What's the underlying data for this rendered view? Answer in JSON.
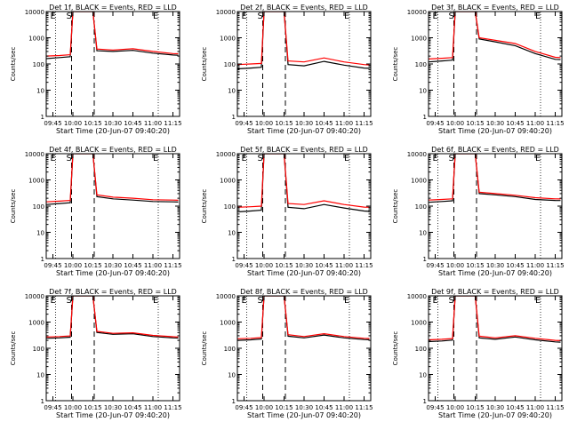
{
  "chart_data": [
    {
      "type": "line",
      "title": "Det 1f, BLACK = Events, RED = LLD",
      "xlabel": "Start Time (20-Jun-07 09:40:20)",
      "ylabel": "Counts/sec",
      "xticks": [
        "09:45",
        "10:00",
        "10:15",
        "10:30",
        "10:45",
        "11:00",
        "11:15"
      ],
      "yticks": [
        "1",
        "10",
        "100",
        "1000",
        "10000"
      ],
      "x_range": [
        "09:40",
        "11:20"
      ],
      "yscale": "log",
      "ylim": [
        1,
        10000
      ],
      "markers": [
        {
          "label": "E",
          "x": "09:47",
          "style": "dotted"
        },
        {
          "label": "S",
          "x": "09:59",
          "style": "dashed"
        },
        {
          "label": "",
          "x": "10:16",
          "style": "dashed"
        },
        {
          "label": "E",
          "x": "11:04",
          "style": "dotted"
        }
      ],
      "series": [
        {
          "name": "Events",
          "color": "#000000",
          "x": [
            "09:40",
            "09:50",
            "09:58",
            "10:00",
            "10:15",
            "10:18",
            "10:30",
            "10:45",
            "11:00",
            "11:15",
            "11:19"
          ],
          "values": [
            160,
            175,
            190,
            10000,
            10000,
            320,
            300,
            330,
            260,
            220,
            215
          ]
        },
        {
          "name": "LLD",
          "color": "#ff0000",
          "x": [
            "09:40",
            "09:50",
            "09:58",
            "10:00",
            "10:15",
            "10:18",
            "10:30",
            "10:45",
            "11:00",
            "11:15",
            "11:19"
          ],
          "values": [
            200,
            210,
            225,
            10000,
            10000,
            370,
            340,
            380,
            300,
            250,
            245
          ]
        }
      ]
    },
    {
      "type": "line",
      "title": "Det 2f, BLACK = Events, RED = LLD",
      "xlabel": "Start Time (20-Jun-07 09:40:20)",
      "ylabel": "Counts/sec",
      "xticks": [
        "09:45",
        "10:00",
        "10:15",
        "10:30",
        "10:45",
        "11:00",
        "11:15"
      ],
      "yticks": [
        "1",
        "10",
        "100",
        "1000",
        "10000"
      ],
      "x_range": [
        "09:40",
        "11:20"
      ],
      "yscale": "log",
      "ylim": [
        1,
        10000
      ],
      "markers": [
        {
          "label": "E",
          "x": "09:47",
          "style": "dotted"
        },
        {
          "label": "S",
          "x": "09:59",
          "style": "dashed"
        },
        {
          "label": "",
          "x": "10:16",
          "style": "dashed"
        },
        {
          "label": "E",
          "x": "11:04",
          "style": "dotted"
        }
      ],
      "series": [
        {
          "name": "Events",
          "color": "#000000",
          "x": [
            "09:40",
            "09:50",
            "09:58",
            "10:00",
            "10:15",
            "10:18",
            "10:30",
            "10:45",
            "11:00",
            "11:15",
            "11:19"
          ],
          "values": [
            65,
            70,
            75,
            10000,
            10000,
            95,
            85,
            125,
            90,
            70,
            68
          ]
        },
        {
          "name": "LLD",
          "color": "#ff0000",
          "x": [
            "09:40",
            "09:50",
            "09:58",
            "10:00",
            "10:15",
            "10:18",
            "10:30",
            "10:45",
            "11:00",
            "11:15",
            "11:19"
          ],
          "values": [
            95,
            100,
            105,
            10000,
            10000,
            130,
            120,
            170,
            120,
            95,
            92
          ]
        }
      ]
    },
    {
      "type": "line",
      "title": "Det 3f, BLACK = Events, RED = LLD",
      "xlabel": "Start Time (20-Jun-07 09:40:20)",
      "ylabel": "Counts/sec",
      "xticks": [
        "09:45",
        "10:00",
        "10:15",
        "10:30",
        "10:45",
        "11:00",
        "11:15"
      ],
      "yticks": [
        "1",
        "10",
        "100",
        "1000",
        "10000"
      ],
      "x_range": [
        "09:40",
        "11:20"
      ],
      "yscale": "log",
      "ylim": [
        1,
        10000
      ],
      "markers": [
        {
          "label": "E",
          "x": "09:47",
          "style": "dotted"
        },
        {
          "label": "S",
          "x": "09:59",
          "style": "dashed"
        },
        {
          "label": "",
          "x": "10:16",
          "style": "dashed"
        },
        {
          "label": "E",
          "x": "11:04",
          "style": "dotted"
        }
      ],
      "series": [
        {
          "name": "Events",
          "color": "#000000",
          "x": [
            "09:40",
            "09:50",
            "09:58",
            "10:00",
            "10:15",
            "10:18",
            "10:30",
            "10:45",
            "11:00",
            "11:15",
            "11:19"
          ],
          "values": [
            120,
            130,
            140,
            10000,
            10000,
            900,
            700,
            500,
            250,
            150,
            148
          ]
        },
        {
          "name": "LLD",
          "color": "#ff0000",
          "x": [
            "09:40",
            "09:50",
            "09:58",
            "10:00",
            "10:15",
            "10:18",
            "10:30",
            "10:45",
            "11:00",
            "11:15",
            "11:19"
          ],
          "values": [
            155,
            165,
            175,
            10000,
            10000,
            1000,
            800,
            600,
            300,
            180,
            176
          ]
        }
      ]
    },
    {
      "type": "line",
      "title": "Det 4f, BLACK = Events, RED = LLD",
      "xlabel": "Start Time (20-Jun-07 09:40:20)",
      "ylabel": "Counts/sec",
      "xticks": [
        "09:45",
        "10:00",
        "10:15",
        "10:30",
        "10:45",
        "11:00",
        "11:15"
      ],
      "yticks": [
        "1",
        "10",
        "100",
        "1000",
        "10000"
      ],
      "x_range": [
        "09:40",
        "11:20"
      ],
      "yscale": "log",
      "ylim": [
        1,
        10000
      ],
      "markers": [
        {
          "label": "E",
          "x": "09:47",
          "style": "dotted"
        },
        {
          "label": "S",
          "x": "09:59",
          "style": "dashed"
        },
        {
          "label": "",
          "x": "10:16",
          "style": "dashed"
        },
        {
          "label": "E",
          "x": "11:04",
          "style": "dotted"
        }
      ],
      "series": [
        {
          "name": "Events",
          "color": "#000000",
          "x": [
            "09:40",
            "09:50",
            "09:58",
            "10:00",
            "10:15",
            "10:18",
            "10:30",
            "10:45",
            "11:00",
            "11:15",
            "11:19"
          ],
          "values": [
            115,
            125,
            135,
            10000,
            10000,
            230,
            190,
            170,
            150,
            145,
            143
          ]
        },
        {
          "name": "LLD",
          "color": "#ff0000",
          "x": [
            "09:40",
            "09:50",
            "09:58",
            "10:00",
            "10:15",
            "10:18",
            "10:30",
            "10:45",
            "11:00",
            "11:15",
            "11:19"
          ],
          "values": [
            145,
            155,
            165,
            10000,
            10000,
            270,
            220,
            200,
            175,
            170,
            168
          ]
        }
      ]
    },
    {
      "type": "line",
      "title": "Det 5f, BLACK = Events, RED = LLD",
      "xlabel": "Start Time (20-Jun-07 09:40:20)",
      "ylabel": "Counts/sec",
      "xticks": [
        "09:45",
        "10:00",
        "10:15",
        "10:30",
        "10:45",
        "11:00",
        "11:15"
      ],
      "yticks": [
        "1",
        "10",
        "100",
        "1000",
        "10000"
      ],
      "x_range": [
        "09:40",
        "11:20"
      ],
      "yscale": "log",
      "ylim": [
        1,
        10000
      ],
      "markers": [
        {
          "label": "E",
          "x": "09:47",
          "style": "dotted"
        },
        {
          "label": "S",
          "x": "09:59",
          "style": "dashed"
        },
        {
          "label": "",
          "x": "10:16",
          "style": "dashed"
        },
        {
          "label": "E",
          "x": "11:04",
          "style": "dotted"
        }
      ],
      "series": [
        {
          "name": "Events",
          "color": "#000000",
          "x": [
            "09:40",
            "09:50",
            "09:58",
            "10:00",
            "10:15",
            "10:18",
            "10:30",
            "10:45",
            "11:00",
            "11:15",
            "11:19"
          ],
          "values": [
            60,
            65,
            70,
            10000,
            10000,
            90,
            80,
            115,
            85,
            65,
            63
          ]
        },
        {
          "name": "LLD",
          "color": "#ff0000",
          "x": [
            "09:40",
            "09:50",
            "09:58",
            "10:00",
            "10:15",
            "10:18",
            "10:30",
            "10:45",
            "11:00",
            "11:15",
            "11:19"
          ],
          "values": [
            90,
            95,
            100,
            10000,
            10000,
            125,
            115,
            160,
            115,
            92,
            90
          ]
        }
      ]
    },
    {
      "type": "line",
      "title": "Det 6f, BLACK = Events, RED = LLD",
      "xlabel": "Start Time (20-Jun-07 09:40:20)",
      "ylabel": "Counts/sec",
      "xticks": [
        "09:45",
        "10:00",
        "10:15",
        "10:30",
        "10:45",
        "11:00",
        "11:15"
      ],
      "yticks": [
        "1",
        "10",
        "100",
        "1000",
        "10000"
      ],
      "x_range": [
        "09:40",
        "11:20"
      ],
      "yscale": "log",
      "ylim": [
        1,
        10000
      ],
      "markers": [
        {
          "label": "E",
          "x": "09:47",
          "style": "dotted"
        },
        {
          "label": "S",
          "x": "09:59",
          "style": "dashed"
        },
        {
          "label": "",
          "x": "10:16",
          "style": "dashed"
        },
        {
          "label": "E",
          "x": "11:04",
          "style": "dotted"
        }
      ],
      "series": [
        {
          "name": "Events",
          "color": "#000000",
          "x": [
            "09:40",
            "09:50",
            "09:58",
            "10:00",
            "10:15",
            "10:18",
            "10:30",
            "10:45",
            "11:00",
            "11:15",
            "11:19"
          ],
          "values": [
            140,
            150,
            160,
            10000,
            10000,
            300,
            270,
            230,
            180,
            165,
            163
          ]
        },
        {
          "name": "LLD",
          "color": "#ff0000",
          "x": [
            "09:40",
            "09:50",
            "09:58",
            "10:00",
            "10:15",
            "10:18",
            "10:30",
            "10:45",
            "11:00",
            "11:15",
            "11:19"
          ],
          "values": [
            170,
            180,
            190,
            10000,
            10000,
            340,
            300,
            260,
            210,
            190,
            188
          ]
        }
      ]
    },
    {
      "type": "line",
      "title": "Det 7f, BLACK = Events, RED = LLD",
      "xlabel": "Start Time (20-Jun-07 09:40:20)",
      "ylabel": "Counts/sec",
      "xticks": [
        "09:45",
        "10:00",
        "10:15",
        "10:30",
        "10:45",
        "11:00",
        "11:15"
      ],
      "yticks": [
        "1",
        "10",
        "100",
        "1000",
        "10000"
      ],
      "x_range": [
        "09:40",
        "11:20"
      ],
      "yscale": "log",
      "ylim": [
        1,
        10000
      ],
      "markers": [
        {
          "label": "E",
          "x": "09:47",
          "style": "dotted"
        },
        {
          "label": "S",
          "x": "09:59",
          "style": "dashed"
        },
        {
          "label": "",
          "x": "10:16",
          "style": "dashed"
        },
        {
          "label": "E",
          "x": "11:04",
          "style": "dotted"
        }
      ],
      "series": [
        {
          "name": "Events",
          "color": "#000000",
          "x": [
            "09:40",
            "09:50",
            "09:58",
            "10:00",
            "10:15",
            "10:18",
            "10:30",
            "10:45",
            "11:00",
            "11:15",
            "11:19"
          ],
          "values": [
            240,
            250,
            265,
            10000,
            10000,
            400,
            340,
            360,
            280,
            250,
            245
          ]
        },
        {
          "name": "LLD",
          "color": "#ff0000",
          "x": [
            "09:40",
            "09:50",
            "09:58",
            "10:00",
            "10:15",
            "10:18",
            "10:30",
            "10:45",
            "11:00",
            "11:15",
            "11:19"
          ],
          "values": [
            270,
            280,
            295,
            10000,
            10000,
            440,
            370,
            390,
            310,
            275,
            270
          ]
        }
      ]
    },
    {
      "type": "line",
      "title": "Det 8f, BLACK = Events, RED = LLD",
      "xlabel": "Start Time (20-Jun-07 09:40:20)",
      "ylabel": "Counts/sec",
      "xticks": [
        "09:45",
        "10:00",
        "10:15",
        "10:30",
        "10:45",
        "11:00",
        "11:15"
      ],
      "yticks": [
        "1",
        "10",
        "100",
        "1000",
        "10000"
      ],
      "x_range": [
        "09:40",
        "11:20"
      ],
      "yscale": "log",
      "ylim": [
        1,
        10000
      ],
      "markers": [
        {
          "label": "E",
          "x": "09:47",
          "style": "dotted"
        },
        {
          "label": "S",
          "x": "09:59",
          "style": "dashed"
        },
        {
          "label": "",
          "x": "10:16",
          "style": "dashed"
        },
        {
          "label": "E",
          "x": "11:04",
          "style": "dotted"
        }
      ],
      "series": [
        {
          "name": "Events",
          "color": "#000000",
          "x": [
            "09:40",
            "09:50",
            "09:58",
            "10:00",
            "10:15",
            "10:18",
            "10:30",
            "10:45",
            "11:00",
            "11:15",
            "11:19"
          ],
          "values": [
            200,
            210,
            225,
            10000,
            10000,
            290,
            250,
            320,
            250,
            215,
            212
          ]
        },
        {
          "name": "LLD",
          "color": "#ff0000",
          "x": [
            "09:40",
            "09:50",
            "09:58",
            "10:00",
            "10:15",
            "10:18",
            "10:30",
            "10:45",
            "11:00",
            "11:15",
            "11:19"
          ],
          "values": [
            230,
            240,
            255,
            10000,
            10000,
            330,
            280,
            360,
            280,
            240,
            236
          ]
        }
      ]
    },
    {
      "type": "line",
      "title": "Det 9f, BLACK = Events, RED = LLD",
      "xlabel": "Start Time (20-Jun-07 09:40:20)",
      "ylabel": "Counts/sec",
      "xticks": [
        "09:45",
        "10:00",
        "10:15",
        "10:30",
        "10:45",
        "11:00",
        "11:15"
      ],
      "yticks": [
        "1",
        "10",
        "100",
        "1000",
        "10000"
      ],
      "x_range": [
        "09:40",
        "11:20"
      ],
      "yscale": "log",
      "ylim": [
        1,
        10000
      ],
      "markers": [
        {
          "label": "E",
          "x": "09:47",
          "style": "dotted"
        },
        {
          "label": "S",
          "x": "09:59",
          "style": "dashed"
        },
        {
          "label": "",
          "x": "10:16",
          "style": "dashed"
        },
        {
          "label": "E",
          "x": "11:04",
          "style": "dotted"
        }
      ],
      "series": [
        {
          "name": "Events",
          "color": "#000000",
          "x": [
            "09:40",
            "09:50",
            "09:58",
            "10:00",
            "10:15",
            "10:18",
            "10:30",
            "10:45",
            "11:00",
            "11:15",
            "11:19"
          ],
          "values": [
            180,
            190,
            205,
            10000,
            10000,
            250,
            220,
            270,
            210,
            175,
            172
          ]
        },
        {
          "name": "LLD",
          "color": "#ff0000",
          "x": [
            "09:40",
            "09:50",
            "09:58",
            "10:00",
            "10:15",
            "10:18",
            "10:30",
            "10:45",
            "11:00",
            "11:15",
            "11:19"
          ],
          "values": [
            210,
            220,
            235,
            10000,
            10000,
            290,
            250,
            300,
            240,
            200,
            196
          ]
        }
      ]
    }
  ]
}
